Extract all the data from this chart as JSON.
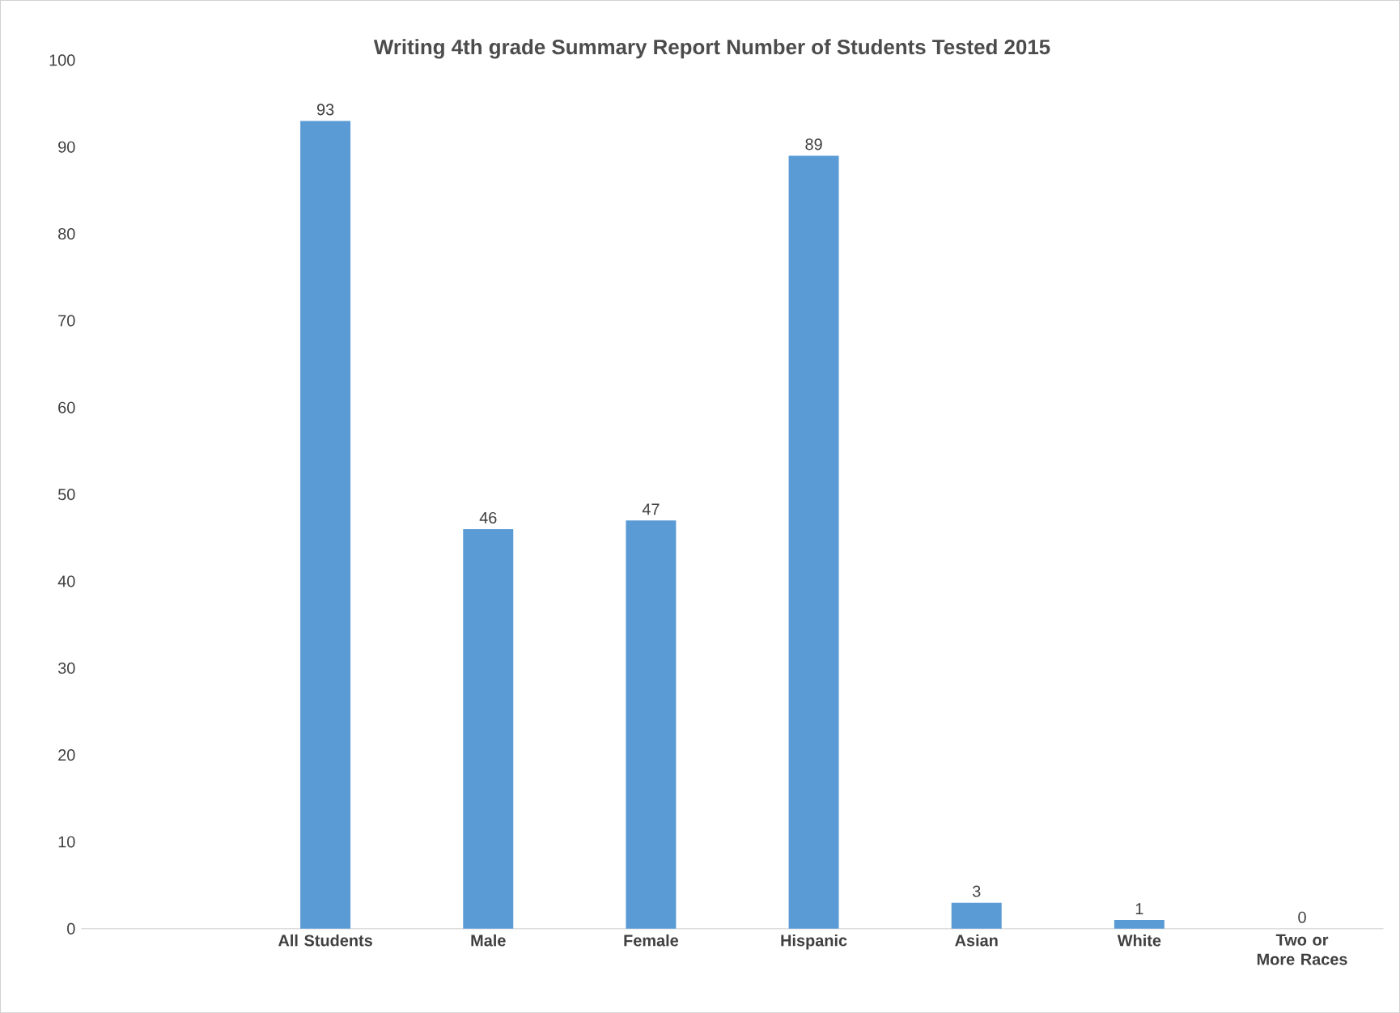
{
  "chart_data": {
    "type": "bar",
    "title": "Writing  4th  grade Summary Report Number of Students Tested 2015",
    "categories": [
      null,
      "All Students",
      "Male",
      "Female",
      "Hispanic",
      "Asian",
      "White",
      "Two or More Races"
    ],
    "values": [
      null,
      93,
      46,
      47,
      89,
      3,
      1,
      0
    ],
    "color": "#5b9bd5",
    "ylim": [
      0,
      100
    ],
    "yticks": [
      0,
      10,
      20,
      30,
      40,
      50,
      60,
      70,
      80,
      90,
      100
    ],
    "data_labels": true
  }
}
